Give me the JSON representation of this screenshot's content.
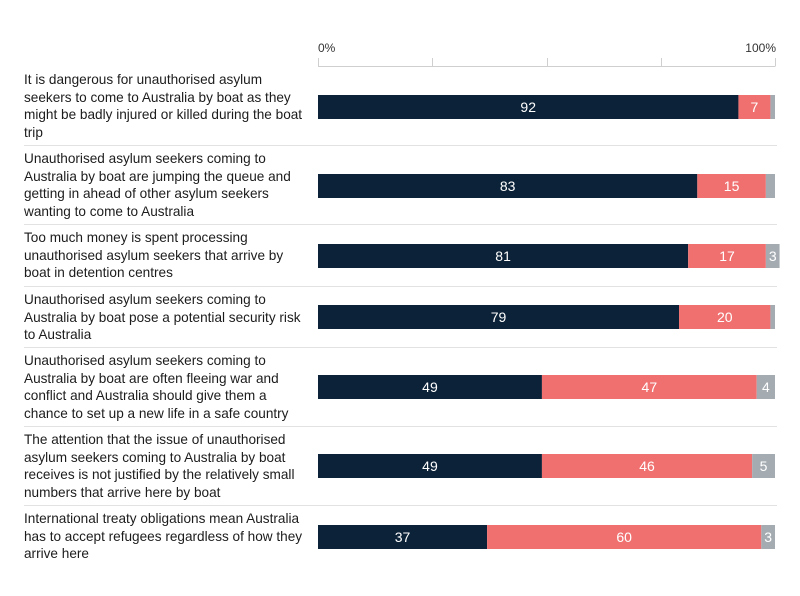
{
  "chart_data": {
    "type": "bar",
    "orientation": "horizontal",
    "stacked": true,
    "title": "",
    "xlabel": "",
    "ylabel": "",
    "xlim": [
      0,
      100
    ],
    "x_tick_labels": [
      "0%",
      "100%"
    ],
    "categories": [
      "It is dangerous for unauthorised asylum seekers to come to Australia by boat as they might be badly injured or killed during the boat trip",
      "Unauthorised asylum seekers coming to Australia by boat are jumping the queue and getting in ahead of other asylum seekers wanting to come to Australia",
      "Too much money is spent processing unauthorised asylum seekers that arrive by boat in detention centres",
      "Unauthorised asylum seekers coming to Australia by boat pose a potential security risk to Australia",
      "Unauthorised asylum seekers coming to Australia by boat are often fleeing war and conflict and Australia should give them a chance to set up a new life in a safe country",
      "The attention that the issue of unauthorised asylum seekers coming to Australia by boat receives is not justified by the relatively small numbers that arrive here by boat",
      "International treaty obligations mean Australia has to accept refugees regardless of how they arrive here"
    ],
    "series": [
      {
        "name": "Series 1",
        "color": "#0c2238",
        "values": [
          92,
          83,
          81,
          79,
          49,
          49,
          37
        ],
        "labels": [
          "92",
          "83",
          "81",
          "79",
          "49",
          "49",
          "37"
        ]
      },
      {
        "name": "Series 2",
        "color": "#f07070",
        "values": [
          7,
          15,
          17,
          20,
          47,
          46,
          60
        ],
        "labels": [
          "7",
          "15",
          "17",
          "20",
          "47",
          "46",
          "60"
        ]
      },
      {
        "name": "Series 3",
        "color": "#a4acb2",
        "values": [
          1,
          2,
          3,
          1,
          4,
          5,
          3
        ],
        "labels": [
          "",
          "",
          "3",
          "",
          "4",
          "5",
          "3"
        ]
      }
    ]
  }
}
